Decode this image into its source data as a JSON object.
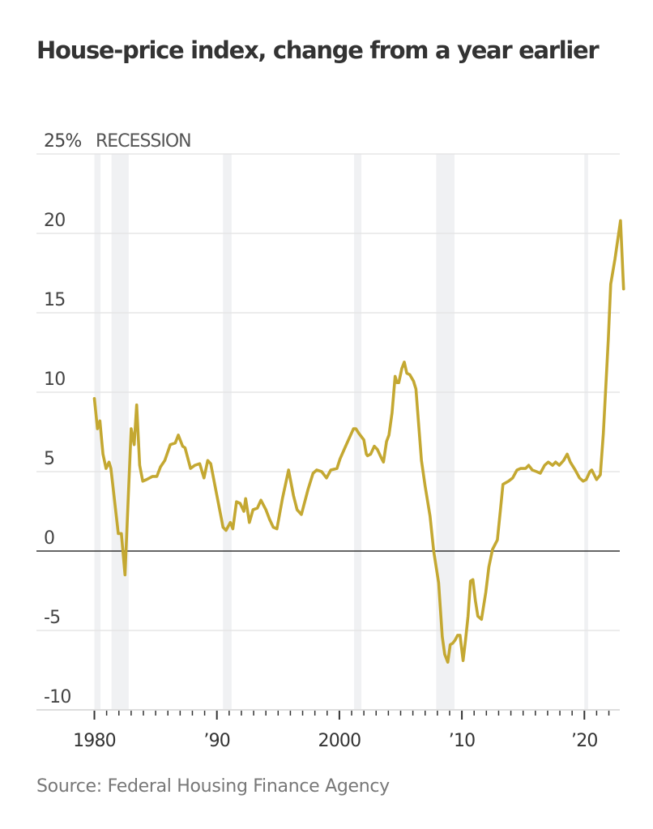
{
  "chart_data": {
    "type": "line",
    "title": "House-price index, change from a year earlier",
    "xlabel": "",
    "ylabel": "",
    "y_unit_label": "25%",
    "legend": [
      "RECESSION"
    ],
    "source": "Source: Federal Housing Finance Agency",
    "xlim": [
      1980,
      2023
    ],
    "ylim": [
      -10,
      25
    ],
    "grid": true,
    "y_ticks": [
      {
        "value": 25,
        "label": "25%"
      },
      {
        "value": 20,
        "label": "20"
      },
      {
        "value": 15,
        "label": "15"
      },
      {
        "value": 10,
        "label": "10"
      },
      {
        "value": 5,
        "label": "5"
      },
      {
        "value": 0,
        "label": "0"
      },
      {
        "value": -5,
        "label": "-5"
      },
      {
        "value": -10,
        "label": "-10"
      }
    ],
    "x_ticks": [
      {
        "value": 1980,
        "label": "1980"
      },
      {
        "value": 1990,
        "label": "’90"
      },
      {
        "value": 2000,
        "label": "2000"
      },
      {
        "value": 2010,
        "label": "’10"
      },
      {
        "value": 2020,
        "label": "’20"
      }
    ],
    "minor_x_ticks_range": [
      1980,
      2022
    ],
    "recessions": [
      [
        1980.0,
        1980.5
      ],
      [
        1981.4,
        1982.8
      ],
      [
        1990.5,
        1991.2
      ],
      [
        2001.2,
        2001.8
      ],
      [
        2007.9,
        2009.4
      ],
      [
        2020.0,
        2020.3
      ]
    ],
    "series": [
      {
        "name": "House-price index, change from a year earlier",
        "color": "#C4A832",
        "points": [
          [
            1980.0,
            9.6
          ],
          [
            1980.25,
            7.7
          ],
          [
            1980.45,
            8.2
          ],
          [
            1980.7,
            6.1
          ],
          [
            1980.95,
            5.2
          ],
          [
            1981.2,
            5.6
          ],
          [
            1981.35,
            5.2
          ],
          [
            1981.95,
            1.1
          ],
          [
            1982.2,
            1.1
          ],
          [
            1982.5,
            -1.5
          ],
          [
            1983.0,
            7.7
          ],
          [
            1983.25,
            6.7
          ],
          [
            1983.45,
            9.2
          ],
          [
            1983.7,
            5.4
          ],
          [
            1983.95,
            4.4
          ],
          [
            1984.25,
            4.5
          ],
          [
            1984.75,
            4.7
          ],
          [
            1985.1,
            4.7
          ],
          [
            1985.4,
            5.3
          ],
          [
            1985.75,
            5.7
          ],
          [
            1986.2,
            6.7
          ],
          [
            1986.6,
            6.8
          ],
          [
            1986.85,
            7.3
          ],
          [
            1987.2,
            6.6
          ],
          [
            1987.4,
            6.5
          ],
          [
            1987.85,
            5.2
          ],
          [
            1988.2,
            5.4
          ],
          [
            1988.6,
            5.5
          ],
          [
            1988.95,
            4.6
          ],
          [
            1989.25,
            5.7
          ],
          [
            1989.5,
            5.5
          ],
          [
            1989.85,
            4.1
          ],
          [
            1990.5,
            1.5
          ],
          [
            1990.75,
            1.3
          ],
          [
            1991.1,
            1.8
          ],
          [
            1991.3,
            1.4
          ],
          [
            1991.6,
            3.1
          ],
          [
            1991.9,
            3.0
          ],
          [
            1992.2,
            2.5
          ],
          [
            1992.35,
            3.3
          ],
          [
            1992.65,
            1.8
          ],
          [
            1992.95,
            2.6
          ],
          [
            1993.3,
            2.7
          ],
          [
            1993.6,
            3.2
          ],
          [
            1994.0,
            2.6
          ],
          [
            1994.3,
            2.0
          ],
          [
            1994.6,
            1.5
          ],
          [
            1994.9,
            1.4
          ],
          [
            1995.35,
            3.3
          ],
          [
            1995.85,
            5.1
          ],
          [
            1996.25,
            3.5
          ],
          [
            1996.55,
            2.6
          ],
          [
            1996.9,
            2.3
          ],
          [
            1997.45,
            3.9
          ],
          [
            1997.85,
            4.9
          ],
          [
            1998.15,
            5.1
          ],
          [
            1998.55,
            5.0
          ],
          [
            1998.95,
            4.6
          ],
          [
            1999.3,
            5.1
          ],
          [
            1999.8,
            5.2
          ],
          [
            2000.05,
            5.8
          ],
          [
            2000.45,
            6.5
          ],
          [
            2000.8,
            7.1
          ],
          [
            2001.15,
            7.7
          ],
          [
            2001.35,
            7.7
          ],
          [
            2001.6,
            7.4
          ],
          [
            2002.0,
            7.0
          ],
          [
            2002.2,
            6.1
          ],
          [
            2002.3,
            6.0
          ],
          [
            2002.55,
            6.1
          ],
          [
            2002.85,
            6.6
          ],
          [
            2003.1,
            6.4
          ],
          [
            2003.4,
            5.9
          ],
          [
            2003.6,
            5.6
          ],
          [
            2003.85,
            6.9
          ],
          [
            2004.05,
            7.3
          ],
          [
            2004.3,
            8.7
          ],
          [
            2004.55,
            11.0
          ],
          [
            2004.7,
            10.6
          ],
          [
            2004.85,
            10.6
          ],
          [
            2005.1,
            11.5
          ],
          [
            2005.3,
            11.9
          ],
          [
            2005.5,
            11.2
          ],
          [
            2005.75,
            11.1
          ],
          [
            2006.05,
            10.7
          ],
          [
            2006.25,
            10.2
          ],
          [
            2006.45,
            8.2
          ],
          [
            2006.7,
            5.7
          ],
          [
            2007.0,
            4.1
          ],
          [
            2007.4,
            2.2
          ],
          [
            2007.7,
            0.0
          ],
          [
            2008.1,
            -2.0
          ],
          [
            2008.4,
            -5.4
          ],
          [
            2008.6,
            -6.5
          ],
          [
            2008.85,
            -7.0
          ],
          [
            2009.05,
            -5.9
          ],
          [
            2009.25,
            -5.8
          ],
          [
            2009.45,
            -5.6
          ],
          [
            2009.65,
            -5.3
          ],
          [
            2009.85,
            -5.3
          ],
          [
            2010.1,
            -6.9
          ],
          [
            2010.3,
            -5.6
          ],
          [
            2010.5,
            -4.1
          ],
          [
            2010.7,
            -1.9
          ],
          [
            2010.9,
            -1.8
          ],
          [
            2011.1,
            -3.1
          ],
          [
            2011.3,
            -4.1
          ],
          [
            2011.6,
            -4.3
          ],
          [
            2011.95,
            -2.6
          ],
          [
            2012.2,
            -1.0
          ],
          [
            2012.5,
            0.1
          ],
          [
            2012.9,
            0.7
          ],
          [
            2013.15,
            2.6
          ],
          [
            2013.35,
            4.2
          ],
          [
            2013.8,
            4.4
          ],
          [
            2014.15,
            4.6
          ],
          [
            2014.5,
            5.1
          ],
          [
            2014.8,
            5.2
          ],
          [
            2015.2,
            5.2
          ],
          [
            2015.45,
            5.4
          ],
          [
            2015.75,
            5.1
          ],
          [
            2016.1,
            5.0
          ],
          [
            2016.4,
            4.9
          ],
          [
            2016.75,
            5.4
          ],
          [
            2017.05,
            5.6
          ],
          [
            2017.4,
            5.4
          ],
          [
            2017.65,
            5.6
          ],
          [
            2017.95,
            5.4
          ],
          [
            2018.3,
            5.7
          ],
          [
            2018.6,
            6.1
          ],
          [
            2018.85,
            5.6
          ],
          [
            2019.25,
            5.1
          ],
          [
            2019.6,
            4.6
          ],
          [
            2019.9,
            4.4
          ],
          [
            2020.15,
            4.5
          ],
          [
            2020.45,
            5.0
          ],
          [
            2020.6,
            5.1
          ],
          [
            2020.8,
            4.8
          ],
          [
            2021.0,
            4.5
          ],
          [
            2021.3,
            4.8
          ],
          [
            2021.55,
            7.4
          ],
          [
            2021.95,
            13.3
          ],
          [
            2022.15,
            16.8
          ],
          [
            2022.5,
            18.4
          ],
          [
            2022.95,
            20.8
          ],
          [
            2023.2,
            16.5
          ]
        ]
      }
    ]
  }
}
